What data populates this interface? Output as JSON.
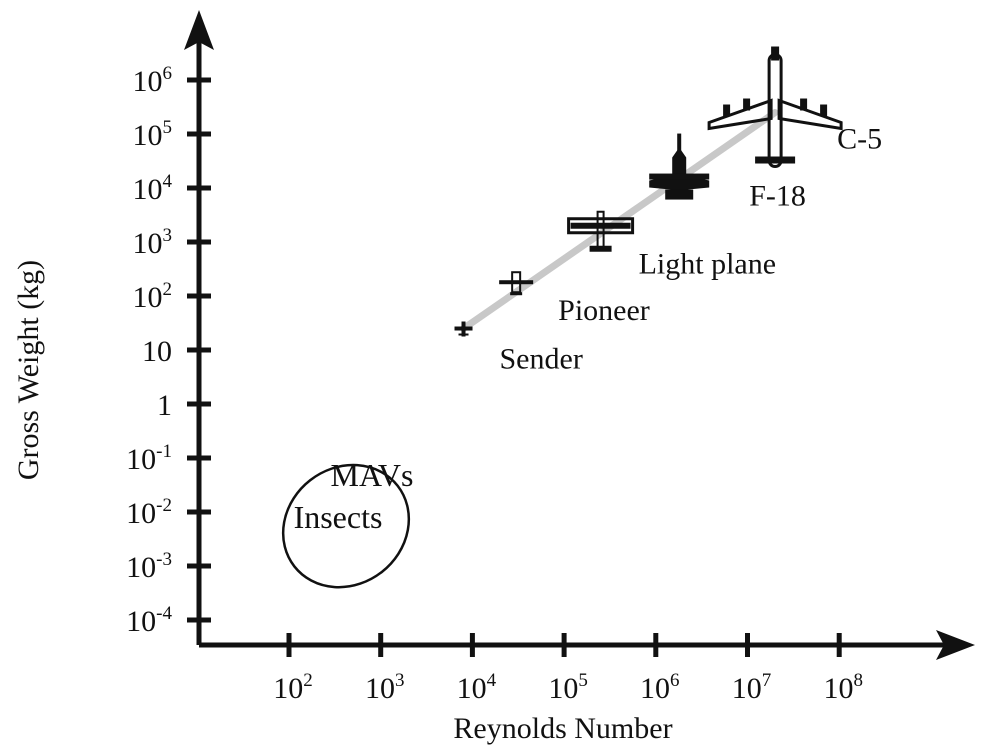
{
  "chart_data": {
    "type": "scatter",
    "title": "",
    "xlabel": "Reynolds Number",
    "ylabel": "Gross Weight (kg)",
    "xscale": "log",
    "yscale": "log",
    "x_ticks": [
      {
        "base": "10",
        "exp": "2"
      },
      {
        "base": "10",
        "exp": "3"
      },
      {
        "base": "10",
        "exp": "4"
      },
      {
        "base": "10",
        "exp": "5"
      },
      {
        "base": "10",
        "exp": "6"
      },
      {
        "base": "10",
        "exp": "7"
      },
      {
        "base": "10",
        "exp": "8"
      }
    ],
    "y_ticks": [
      {
        "base": "10",
        "exp": "-4"
      },
      {
        "base": "10",
        "exp": "-3"
      },
      {
        "base": "10",
        "exp": "-2"
      },
      {
        "base": "10",
        "exp": "-1"
      },
      {
        "base": "1",
        "exp": ""
      },
      {
        "base": "10",
        "exp": ""
      },
      {
        "base": "10",
        "exp": "2"
      },
      {
        "base": "10",
        "exp": "3"
      },
      {
        "base": "10",
        "exp": "4"
      },
      {
        "base": "10",
        "exp": "5"
      },
      {
        "base": "10",
        "exp": "6"
      }
    ],
    "points": [
      {
        "label": "Sender",
        "x": 8000,
        "y": 25,
        "icon": "small-uav-icon"
      },
      {
        "label": "Pioneer",
        "x": 30000,
        "y": 180,
        "icon": "pioneer-uav-icon"
      },
      {
        "label": "Light plane",
        "x": 250000,
        "y": 2000,
        "icon": "light-plane-icon"
      },
      {
        "label": "F-18",
        "x": 1800000,
        "y": 17000,
        "icon": "fighter-jet-icon"
      },
      {
        "label": "C-5",
        "x": 20000000,
        "y": 250000,
        "icon": "cargo-plane-icon"
      }
    ],
    "trend_line": {
      "x": [
        8000,
        20000000
      ],
      "y": [
        25,
        250000
      ],
      "color": "#c8c8c8"
    },
    "region": {
      "labels": [
        "MAVs",
        "Insects"
      ],
      "x_range": [
        70,
        2500
      ],
      "y_range": [
        0.0001,
        0.3
      ]
    },
    "grid": false,
    "legend": "none"
  }
}
